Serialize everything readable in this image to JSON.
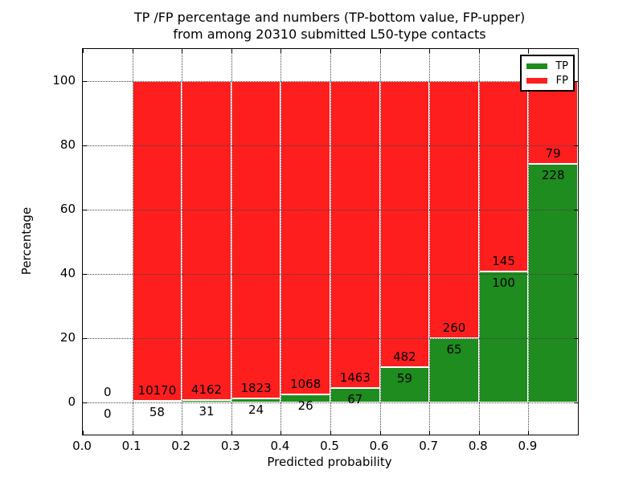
{
  "title": {
    "line1": "TP /FP percentage and numbers (TP-bottom value, FP-upper)",
    "line2": "from among 20310 submitted L50-type contacts"
  },
  "axes": {
    "xlabel": "Predicted probability",
    "ylabel": "Percentage",
    "xtick_labels": [
      "0.0",
      "0.1",
      "0.2",
      "0.3",
      "0.4",
      "0.5",
      "0.6",
      "0.7",
      "0.8",
      "0.9"
    ],
    "ytick_labels": [
      "0",
      "20",
      "40",
      "60",
      "80",
      "100"
    ],
    "ytick_values": [
      0,
      20,
      40,
      60,
      80,
      100
    ],
    "xlim": [
      0.0,
      1.0
    ],
    "ylim": [
      -10,
      110
    ],
    "grid": "dotted, drawn over bars"
  },
  "legend": {
    "position": "upper right",
    "items": [
      {
        "label": "TP",
        "color": "#1e8c1e"
      },
      {
        "label": "FP",
        "color": "#ff1e1e"
      }
    ]
  },
  "chart_data": {
    "type": "bar",
    "stacked": true,
    "description": "Each 0.1-wide probability bin is a 100%-tall stacked bar: TP share (green) on bottom, FP share (red) on top. Labels show raw counts: FP count above the boundary, TP count below it.",
    "total_contacts": 20310,
    "bin_edges": [
      0.0,
      0.1,
      0.2,
      0.3,
      0.4,
      0.5,
      0.6,
      0.7,
      0.8,
      0.9,
      1.0
    ],
    "bins": [
      {
        "range": "0.0-0.1",
        "tp": 0,
        "fp": 0,
        "tp_pct": 0
      },
      {
        "range": "0.1-0.2",
        "tp": 58,
        "fp": 10170,
        "tp_pct": 0.57
      },
      {
        "range": "0.2-0.3",
        "tp": 31,
        "fp": 4162,
        "tp_pct": 0.74
      },
      {
        "range": "0.3-0.4",
        "tp": 24,
        "fp": 1823,
        "tp_pct": 1.3
      },
      {
        "range": "0.4-0.5",
        "tp": 26,
        "fp": 1068,
        "tp_pct": 2.38
      },
      {
        "range": "0.5-0.6",
        "tp": 67,
        "fp": 1463,
        "tp_pct": 4.38
      },
      {
        "range": "0.6-0.7",
        "tp": 59,
        "fp": 482,
        "tp_pct": 10.91
      },
      {
        "range": "0.7-0.8",
        "tp": 65,
        "fp": 260,
        "tp_pct": 20.0
      },
      {
        "range": "0.8-0.9",
        "tp": 100,
        "fp": 145,
        "tp_pct": 40.82
      },
      {
        "range": "0.9-1.0",
        "tp": 228,
        "fp": 79,
        "tp_pct": 74.27
      }
    ]
  },
  "colors": {
    "tp": "#1e8c1e",
    "fp": "#ff1e1e",
    "bar_edge": "#ffffff",
    "grid": "#444444",
    "spine": "#000000",
    "background": "#ffffff"
  }
}
